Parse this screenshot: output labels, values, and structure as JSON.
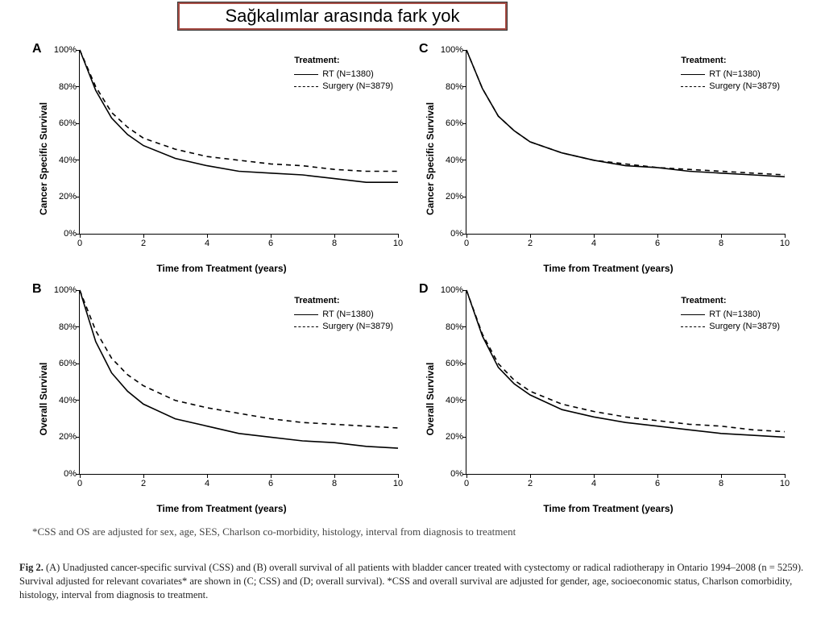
{
  "banner": {
    "text": "Sağkalımlar arasında fark yok",
    "bg": "#a84e46"
  },
  "footnote": "*CSS and OS are adjusted for sex, age, SES, Charlson co-morbidity, histology, interval from diagnosis to treatment",
  "caption_lead": "Fig 2.",
  "caption_body": " (A) Unadjusted cancer-specific survival (CSS) and (B) overall survival of all patients with bladder cancer treated with cystectomy or radical radiotherapy in Ontario 1994–2008 (n = 5259). Survival adjusted for relevant covariates* are shown in (C; CSS) and (D; overall survival). *CSS and overall survival are adjusted for gender, age, socioeconomic status, Charlson comorbidity, histology, interval from diagnosis to treatment.",
  "legend": {
    "title": "Treatment:",
    "rt": "RT (N=1380)",
    "surg": "Surgery (N=3879)"
  },
  "axes": {
    "xlabel": "Time from Treatment (years)",
    "xmin": 0,
    "xmax": 10,
    "xticks": [
      0,
      2,
      4,
      6,
      8,
      10
    ],
    "ymin": 0,
    "ymax": 100,
    "yticks": [
      0,
      20,
      40,
      60,
      80,
      100
    ],
    "ytick_labels": [
      "0%",
      "20%",
      "40%",
      "60%",
      "80%",
      "100%"
    ]
  },
  "panels": {
    "A": {
      "row": 0,
      "col": 0,
      "label": "A",
      "ylabel": "Cancer Specific Survival",
      "rt": [
        [
          0,
          100
        ],
        [
          0.5,
          78
        ],
        [
          1,
          63
        ],
        [
          1.5,
          54
        ],
        [
          2,
          48
        ],
        [
          3,
          41
        ],
        [
          4,
          37
        ],
        [
          5,
          34
        ],
        [
          6,
          33
        ],
        [
          7,
          32
        ],
        [
          8,
          30
        ],
        [
          9,
          28
        ],
        [
          10,
          28
        ]
      ],
      "surg": [
        [
          0,
          100
        ],
        [
          0.5,
          80
        ],
        [
          1,
          66
        ],
        [
          1.5,
          58
        ],
        [
          2,
          52
        ],
        [
          3,
          46
        ],
        [
          4,
          42
        ],
        [
          5,
          40
        ],
        [
          6,
          38
        ],
        [
          7,
          37
        ],
        [
          8,
          35
        ],
        [
          9,
          34
        ],
        [
          10,
          34
        ]
      ]
    },
    "B": {
      "row": 1,
      "col": 0,
      "label": "B",
      "ylabel": "Overall Survival",
      "rt": [
        [
          0,
          100
        ],
        [
          0.5,
          72
        ],
        [
          1,
          55
        ],
        [
          1.5,
          45
        ],
        [
          2,
          38
        ],
        [
          3,
          30
        ],
        [
          4,
          26
        ],
        [
          5,
          22
        ],
        [
          6,
          20
        ],
        [
          7,
          18
        ],
        [
          8,
          17
        ],
        [
          9,
          15
        ],
        [
          10,
          14
        ]
      ],
      "surg": [
        [
          0,
          100
        ],
        [
          0.5,
          78
        ],
        [
          1,
          63
        ],
        [
          1.5,
          54
        ],
        [
          2,
          48
        ],
        [
          3,
          40
        ],
        [
          4,
          36
        ],
        [
          5,
          33
        ],
        [
          6,
          30
        ],
        [
          7,
          28
        ],
        [
          8,
          27
        ],
        [
          9,
          26
        ],
        [
          10,
          25
        ]
      ]
    },
    "C": {
      "row": 0,
      "col": 1,
      "label": "C",
      "ylabel": "Cancer Specific Survival",
      "rt": [
        [
          0,
          100
        ],
        [
          0.5,
          79
        ],
        [
          1,
          64
        ],
        [
          1.5,
          56
        ],
        [
          2,
          50
        ],
        [
          3,
          44
        ],
        [
          4,
          40
        ],
        [
          5,
          37
        ],
        [
          6,
          36
        ],
        [
          7,
          34
        ],
        [
          8,
          33
        ],
        [
          9,
          32
        ],
        [
          10,
          31
        ]
      ],
      "surg": [
        [
          0,
          100
        ],
        [
          0.5,
          79
        ],
        [
          1,
          64
        ],
        [
          1.5,
          56
        ],
        [
          2,
          50
        ],
        [
          3,
          44
        ],
        [
          4,
          40
        ],
        [
          5,
          38
        ],
        [
          6,
          36
        ],
        [
          7,
          35
        ],
        [
          8,
          34
        ],
        [
          9,
          33
        ],
        [
          10,
          32
        ]
      ]
    },
    "D": {
      "row": 1,
      "col": 1,
      "label": "D",
      "ylabel": "Overall Survival",
      "rt": [
        [
          0,
          100
        ],
        [
          0.5,
          75
        ],
        [
          1,
          58
        ],
        [
          1.5,
          49
        ],
        [
          2,
          43
        ],
        [
          3,
          35
        ],
        [
          4,
          31
        ],
        [
          5,
          28
        ],
        [
          6,
          26
        ],
        [
          7,
          24
        ],
        [
          8,
          22
        ],
        [
          9,
          21
        ],
        [
          10,
          20
        ]
      ],
      "surg": [
        [
          0,
          100
        ],
        [
          0.5,
          76
        ],
        [
          1,
          60
        ],
        [
          1.5,
          51
        ],
        [
          2,
          45
        ],
        [
          3,
          38
        ],
        [
          4,
          34
        ],
        [
          5,
          31
        ],
        [
          6,
          29
        ],
        [
          7,
          27
        ],
        [
          8,
          26
        ],
        [
          9,
          24
        ],
        [
          10,
          23
        ]
      ]
    }
  },
  "style": {
    "solid_color": "#000000",
    "dashed_color": "#000000",
    "line_width": 1.6,
    "dash_pattern": "6 5",
    "bg": "#ffffff",
    "tick_fontsize": 11,
    "label_fontsize": 12,
    "panel_label_fontsize": 16
  }
}
